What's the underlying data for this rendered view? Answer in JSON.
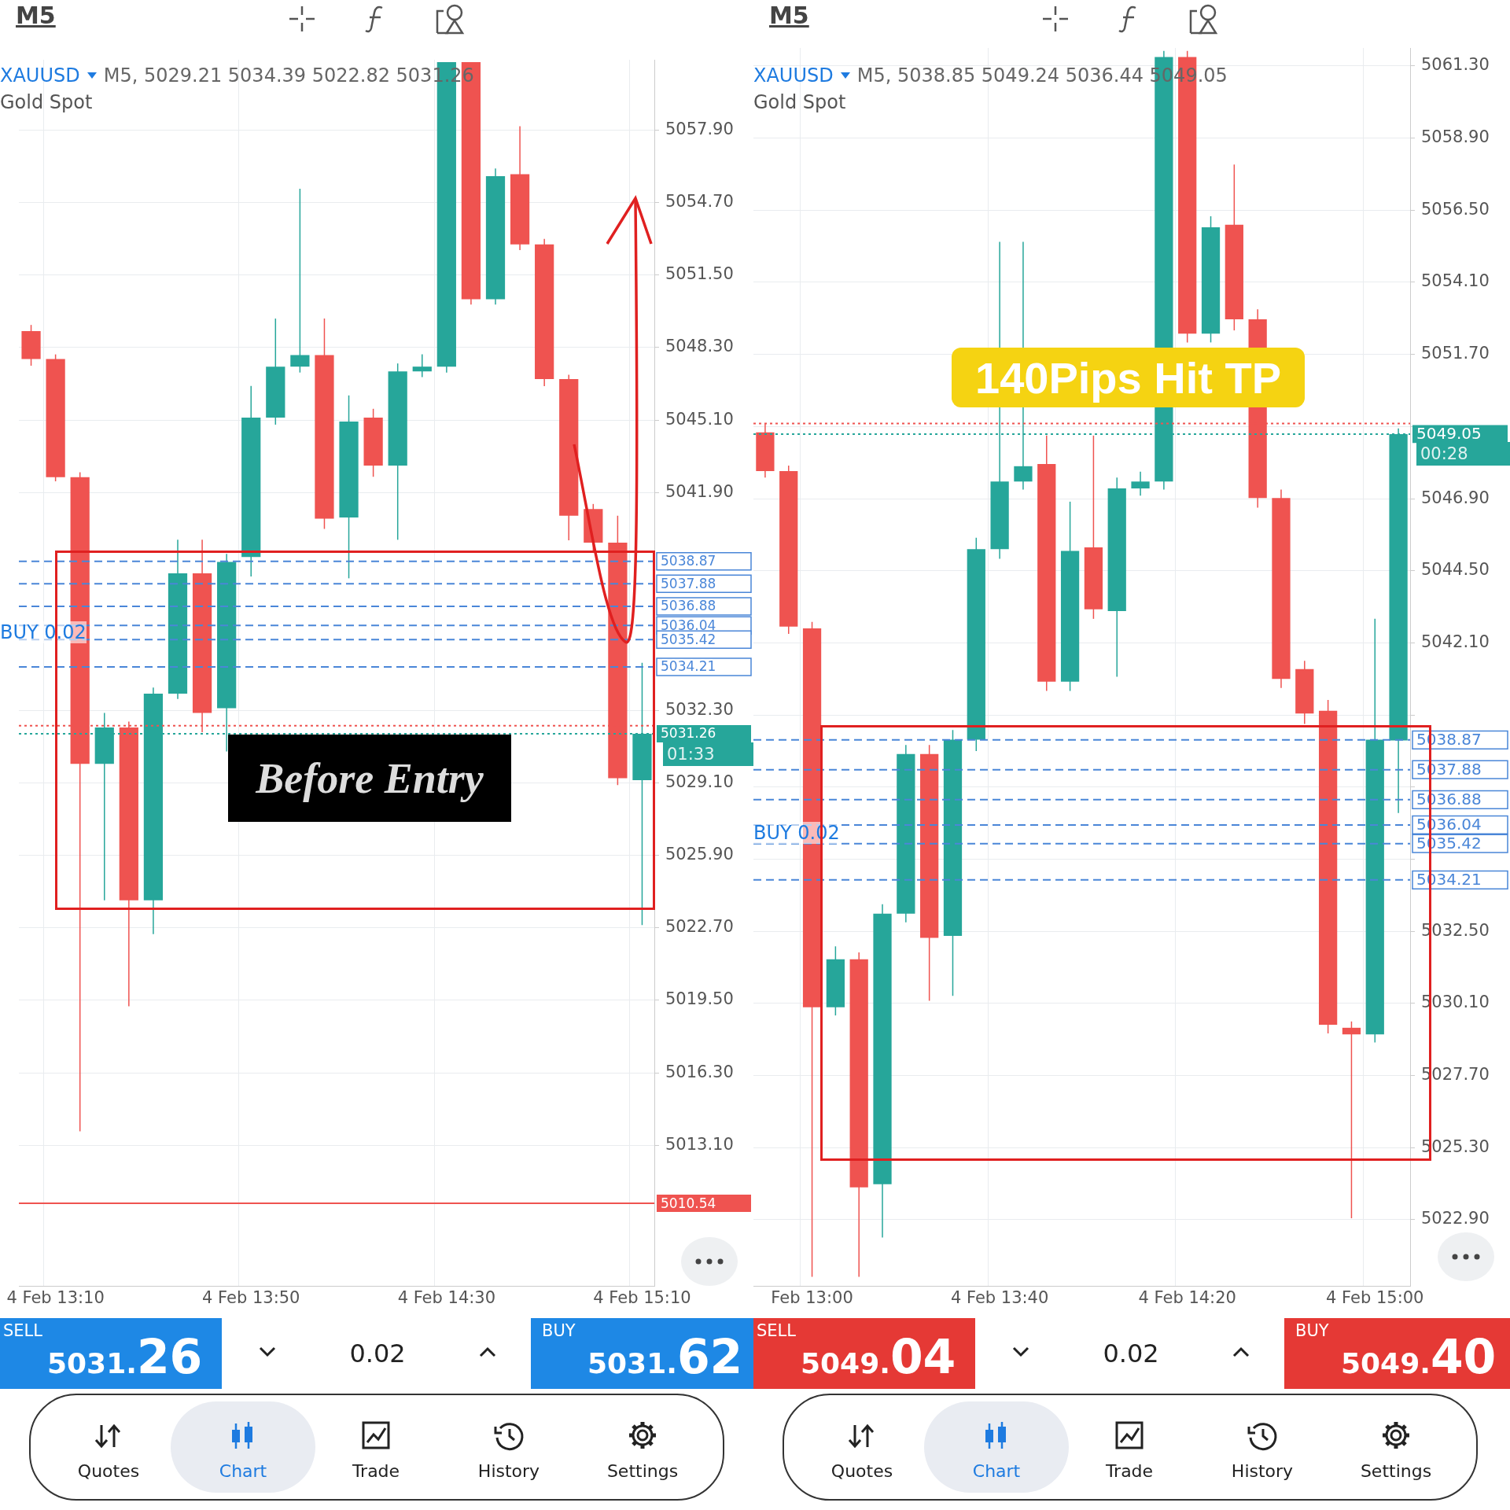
{
  "chart_data": [
    {
      "type": "candlestick",
      "title": "XAUUSD",
      "subtitle": "Gold Spot",
      "categories": [
        null,
        "4 Feb 13:10",
        null,
        null,
        null,
        null,
        null,
        null,
        null,
        "4 Feb 13:50",
        null,
        null,
        null,
        null,
        null,
        null,
        null,
        "4 Feb 14:30",
        null,
        null,
        null,
        null,
        null,
        null,
        null,
        "4 Feb 15:10"
      ],
      "ohlc": [
        [
          5049.03,
          5049.3,
          5047.5,
          5047.8
        ],
        [
          5047.8,
          5048.0,
          5042.4,
          5042.58
        ],
        [
          5042.58,
          5042.8,
          5013.72,
          5029.93
        ],
        [
          5029.93,
          5032.18,
          5023.91,
          5031.54
        ],
        [
          5031.54,
          5031.8,
          5019.24,
          5023.91
        ],
        [
          5023.91,
          5033.3,
          5022.42,
          5033.03
        ],
        [
          5033.03,
          5039.82,
          5032.8,
          5038.34
        ],
        [
          5038.34,
          5039.82,
          5031.33,
          5032.18
        ],
        [
          5032.39,
          5039.2,
          5030.48,
          5038.84
        ],
        [
          5039.06,
          5046.61,
          5038.2,
          5045.21
        ],
        [
          5045.21,
          5049.58,
          5044.9,
          5047.46
        ],
        [
          5047.46,
          5055.31,
          5047.2,
          5047.97
        ],
        [
          5047.97,
          5049.58,
          5040.3,
          5040.75
        ],
        [
          5040.8,
          5046.19,
          5038.12,
          5045.04
        ],
        [
          5045.21,
          5045.6,
          5042.6,
          5043.09
        ],
        [
          5043.09,
          5047.6,
          5039.82,
          5047.25
        ],
        [
          5047.25,
          5048.0,
          5047.0,
          5047.46
        ],
        [
          5047.46,
          5060.9,
          5047.2,
          5060.9
        ],
        [
          5060.9,
          5060.9,
          5050.2,
          5050.43
        ],
        [
          5050.43,
          5056.2,
          5050.2,
          5055.86
        ],
        [
          5055.95,
          5058.07,
          5052.6,
          5052.85
        ],
        [
          5052.85,
          5053.1,
          5046.6,
          5046.91
        ],
        [
          5046.91,
          5047.1,
          5039.8,
          5040.88
        ],
        [
          5041.18,
          5041.4,
          5039.3,
          5039.69
        ],
        [
          5039.69,
          5040.88,
          5029.0,
          5029.3
        ],
        [
          5029.21,
          5034.39,
          5022.82,
          5031.26
        ]
      ],
      "colors": [
        "#ef5350",
        "#ef5350",
        "#ef5350",
        "#26a69a",
        "#ef5350",
        "#26a69a",
        "#26a69a",
        "#ef5350",
        "#26a69a",
        "#26a69a",
        "#26a69a",
        "#26a69a",
        "#ef5350",
        "#26a69a",
        "#ef5350",
        "#26a69a",
        "#26a69a",
        "#26a69a",
        "#ef5350",
        "#26a69a",
        "#ef5350",
        "#ef5350",
        "#ef5350",
        "#ef5350",
        "#ef5350",
        "#26a69a"
      ],
      "ylim": [
        5006.9,
        5061.0
      ],
      "yticks": [
        {
          "value": 5057.9,
          "label": "5057.90"
        },
        {
          "value": 5054.7,
          "label": "5054.70"
        },
        {
          "value": 5051.5,
          "label": "5051.50"
        },
        {
          "value": 5048.3,
          "label": "5048.30"
        },
        {
          "value": 5045.1,
          "label": "5045.10"
        },
        {
          "value": 5041.9,
          "label": "5041.90"
        },
        {
          "value": 5032.3,
          "label": "5032.30"
        },
        {
          "value": 5029.1,
          "label": "5029.10"
        },
        {
          "value": 5025.9,
          "label": "5025.90"
        },
        {
          "value": 5022.7,
          "label": "5022.70"
        },
        {
          "value": 5019.5,
          "label": "5019.50"
        },
        {
          "value": 5016.3,
          "label": "5016.30"
        },
        {
          "value": 5013.1,
          "label": "5013.10"
        }
      ],
      "grid": true,
      "ref_lines": [
        {
          "axis": "y",
          "value": 5038.87,
          "label": "5038.87",
          "color": "#4a86d8",
          "line_style": "dashed"
        },
        {
          "axis": "y",
          "value": 5037.88,
          "label": "5037.88",
          "color": "#4a86d8",
          "line_style": "dashed"
        },
        {
          "axis": "y",
          "value": 5036.88,
          "label": "5036.88",
          "color": "#4a86d8",
          "line_style": "dashed"
        },
        {
          "axis": "y",
          "value": 5036.04,
          "label": "5036.04",
          "color": "#4a86d8",
          "line_style": "dashed"
        },
        {
          "axis": "y",
          "value": 5035.42,
          "label": "5035.42",
          "color": "#4a86d8",
          "line_style": "dashed"
        },
        {
          "axis": "y",
          "value": 5034.21,
          "label": "5034.21",
          "color": "#4a86d8",
          "line_style": "dashed"
        },
        {
          "axis": "y",
          "value": 5031.62,
          "label": null,
          "color": "#ef5350",
          "line_style": "dotted"
        },
        {
          "axis": "y",
          "value": 5031.26,
          "label": "5031.26",
          "color": "#26a69a",
          "line_style": "dotted"
        },
        {
          "axis": "y",
          "value": 5010.54,
          "label": "5010.54",
          "color": "#ef5350",
          "line_style": "solid"
        }
      ],
      "annotations": [
        "M5",
        "M5, 5029.21 5034.39 5022.82 5031.26",
        "Before Entry",
        "BUY 0.02",
        "01:33",
        "SELL",
        "5031.26",
        "0.02",
        "BUY",
        "5031.62",
        "Quotes",
        "Chart",
        "Trade",
        "History",
        "Settings"
      ]
    },
    {
      "type": "candlestick",
      "title": "XAUUSD",
      "subtitle": "Gold Spot",
      "categories": [
        null,
        null,
        "Feb 13:00",
        null,
        null,
        null,
        null,
        null,
        null,
        null,
        "4 Feb 13:40",
        null,
        null,
        null,
        null,
        null,
        null,
        null,
        "4 Feb 14:20",
        null,
        null,
        null,
        null,
        null,
        null,
        null,
        "4 Feb 15:00",
        null
      ],
      "ohlc": [
        [
          5049.11,
          5049.4,
          5047.6,
          5047.82
        ],
        [
          5047.82,
          5048.0,
          5042.4,
          5042.64
        ],
        [
          5042.58,
          5042.8,
          5021.0,
          5029.97
        ],
        [
          5029.97,
          5032.0,
          5029.7,
          5031.57
        ],
        [
          5031.57,
          5031.8,
          5021.0,
          5023.98
        ],
        [
          5024.08,
          5033.4,
          5022.31,
          5033.09
        ],
        [
          5033.09,
          5038.7,
          5032.8,
          5038.4
        ],
        [
          5038.4,
          5038.7,
          5030.19,
          5032.28
        ],
        [
          5032.35,
          5039.2,
          5030.35,
          5038.88
        ],
        [
          5038.88,
          5045.6,
          5038.5,
          5045.22
        ],
        [
          5045.22,
          5055.45,
          5044.9,
          5047.47
        ],
        [
          5047.47,
          5055.45,
          5047.2,
          5047.98
        ],
        [
          5048.05,
          5049.0,
          5040.5,
          5040.81
        ],
        [
          5040.81,
          5046.8,
          5040.5,
          5045.16
        ],
        [
          5045.28,
          5049.0,
          5042.9,
          5043.22
        ],
        [
          5043.16,
          5047.6,
          5040.97,
          5047.24
        ],
        [
          5047.24,
          5047.8,
          5047.0,
          5047.47
        ],
        [
          5047.47,
          5061.8,
          5047.2,
          5061.6
        ],
        [
          5061.6,
          5061.8,
          5052.1,
          5052.39
        ],
        [
          5052.39,
          5056.3,
          5052.1,
          5055.93
        ],
        [
          5056.02,
          5058.02,
          5052.5,
          5052.87
        ],
        [
          5052.87,
          5053.2,
          5046.6,
          5046.92
        ],
        [
          5046.92,
          5047.2,
          5040.6,
          5040.9
        ],
        [
          5041.23,
          5041.5,
          5039.4,
          5039.75
        ],
        [
          5039.84,
          5040.2,
          5029.1,
          5029.39
        ],
        [
          5029.29,
          5029.5,
          5022.95,
          5029.07
        ],
        [
          5029.07,
          5042.9,
          5028.8,
          5038.88
        ],
        [
          5038.85,
          5049.24,
          5036.44,
          5049.05
        ]
      ],
      "colors": [
        "#ef5350",
        "#ef5350",
        "#ef5350",
        "#26a69a",
        "#ef5350",
        "#26a69a",
        "#26a69a",
        "#ef5350",
        "#26a69a",
        "#26a69a",
        "#26a69a",
        "#26a69a",
        "#ef5350",
        "#26a69a",
        "#ef5350",
        "#26a69a",
        "#26a69a",
        "#26a69a",
        "#ef5350",
        "#26a69a",
        "#ef5350",
        "#ef5350",
        "#ef5350",
        "#ef5350",
        "#ef5350",
        "#ef5350",
        "#26a69a",
        "#26a69a"
      ],
      "ylim": [
        5020.7,
        5061.9
      ],
      "yticks": [
        {
          "value": 5061.3,
          "label": "5061.30"
        },
        {
          "value": 5058.9,
          "label": "5058.90"
        },
        {
          "value": 5056.5,
          "label": "5056.50"
        },
        {
          "value": 5054.1,
          "label": "5054.10"
        },
        {
          "value": 5051.7,
          "label": "5051.70"
        },
        {
          "value": 5049.3,
          "label": null
        },
        {
          "value": 5046.9,
          "label": "5046.90"
        },
        {
          "value": 5044.5,
          "label": "5044.50"
        },
        {
          "value": 5042.1,
          "label": "5042.10"
        },
        {
          "value": 5039.7,
          "label": null
        },
        {
          "value": 5037.3,
          "label": null
        },
        {
          "value": 5034.9,
          "label": null
        },
        {
          "value": 5032.5,
          "label": "5032.50"
        },
        {
          "value": 5030.1,
          "label": "5030.10"
        },
        {
          "value": 5027.7,
          "label": "5027.70"
        },
        {
          "value": 5025.3,
          "label": "5025.30"
        },
        {
          "value": 5022.9,
          "label": "5022.90"
        }
      ],
      "grid": true,
      "ref_lines": [
        {
          "axis": "y",
          "value": 5038.87,
          "label": "5038.87",
          "color": "#4a86d8",
          "line_style": "dashed"
        },
        {
          "axis": "y",
          "value": 5037.88,
          "label": "5037.88",
          "color": "#4a86d8",
          "line_style": "dashed"
        },
        {
          "axis": "y",
          "value": 5036.88,
          "label": "5036.88",
          "color": "#4a86d8",
          "line_style": "dashed"
        },
        {
          "axis": "y",
          "value": 5036.04,
          "label": "5036.04",
          "color": "#4a86d8",
          "line_style": "dashed"
        },
        {
          "axis": "y",
          "value": 5035.42,
          "label": "5035.42",
          "color": "#4a86d8",
          "line_style": "dashed"
        },
        {
          "axis": "y",
          "value": 5034.21,
          "label": "5034.21",
          "color": "#4a86d8",
          "line_style": "dashed"
        },
        {
          "axis": "y",
          "value": 5049.4,
          "label": null,
          "color": "#ef5350",
          "line_style": "dotted"
        },
        {
          "axis": "y",
          "value": 5049.05,
          "label": "5049.05",
          "color": "#26a69a",
          "line_style": "dotted"
        }
      ],
      "annotations": [
        "M5",
        "M5, 5038.85 5049.24 5036.44 5049.05",
        "140Pips Hit TP",
        "BUY 0.02",
        "00:28",
        "SELL",
        "5049.04",
        "0.02",
        "BUY",
        "5049.40",
        "Quotes",
        "Chart",
        "Trade",
        "History",
        "Settings"
      ]
    }
  ]
}
